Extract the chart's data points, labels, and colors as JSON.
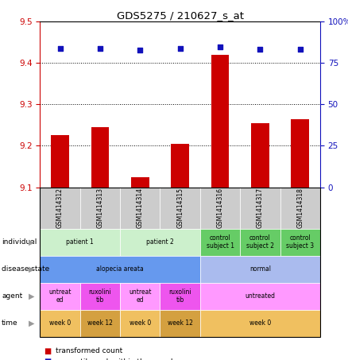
{
  "title": "GDS5275 / 210627_s_at",
  "samples": [
    "GSM1414312",
    "GSM1414313",
    "GSM1414314",
    "GSM1414315",
    "GSM1414316",
    "GSM1414317",
    "GSM1414318"
  ],
  "transformed_count": [
    9.225,
    9.245,
    9.125,
    9.205,
    9.42,
    9.255,
    9.265
  ],
  "percentile_rank_left": [
    9.435,
    9.435,
    9.432,
    9.435,
    9.438,
    9.434,
    9.434
  ],
  "ylim_left": [
    9.1,
    9.5
  ],
  "ylim_right": [
    0,
    100
  ],
  "yticks_left": [
    9.1,
    9.2,
    9.3,
    9.4,
    9.5
  ],
  "yticks_right": [
    0,
    25,
    50,
    75,
    100
  ],
  "ytick_labels_right": [
    "0",
    "25",
    "50",
    "75",
    "100%"
  ],
  "bar_color": "#cc0000",
  "dot_color": "#1111bb",
  "row_labels": [
    "individual",
    "disease state",
    "agent",
    "time"
  ],
  "individual_spans": [
    [
      0,
      2,
      "patient 1",
      "#ccf0cc"
    ],
    [
      2,
      4,
      "patient 2",
      "#ccf0cc"
    ],
    [
      4,
      5,
      "control\nsubject 1",
      "#66cc66"
    ],
    [
      5,
      6,
      "control\nsubject 2",
      "#66cc66"
    ],
    [
      6,
      7,
      "control\nsubject 3",
      "#66cc66"
    ]
  ],
  "disease_state_spans": [
    [
      0,
      4,
      "alopecia areata",
      "#6699ee"
    ],
    [
      4,
      7,
      "normal",
      "#aabbee"
    ]
  ],
  "agent_spans": [
    [
      0,
      1,
      "untreat\ned",
      "#ff99ff"
    ],
    [
      1,
      2,
      "ruxolini\ntib",
      "#ee55ee"
    ],
    [
      2,
      3,
      "untreat\ned",
      "#ff99ff"
    ],
    [
      3,
      4,
      "ruxolini\ntib",
      "#ee55ee"
    ],
    [
      4,
      7,
      "untreated",
      "#ff99ff"
    ]
  ],
  "time_spans": [
    [
      0,
      1,
      "week 0",
      "#f0c060"
    ],
    [
      1,
      2,
      "week 12",
      "#d4a040"
    ],
    [
      2,
      3,
      "week 0",
      "#f0c060"
    ],
    [
      3,
      4,
      "week 12",
      "#d4a040"
    ],
    [
      4,
      7,
      "week 0",
      "#f0c060"
    ]
  ],
  "sample_bg": "#cccccc",
  "grid_dotted_values": [
    9.2,
    9.3,
    9.4
  ],
  "left_axis_color": "#cc0000",
  "right_axis_color": "#1111bb"
}
